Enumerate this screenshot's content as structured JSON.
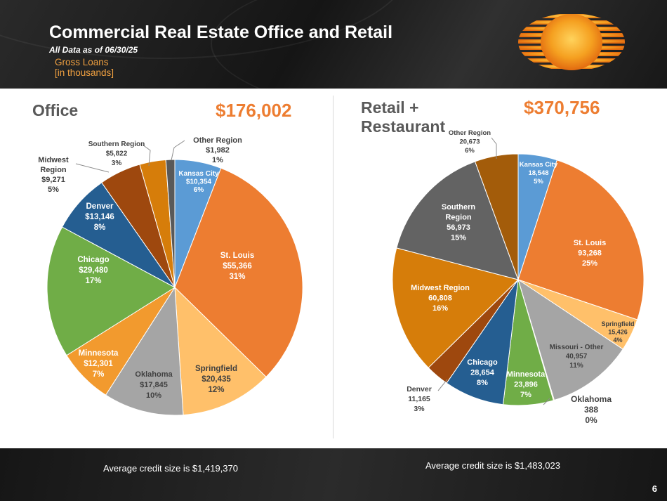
{
  "header": {
    "title": "Commercial Real Estate Office and Retail",
    "subtitle": "All Data as of 06/30/25",
    "gross_line1": "Gross Loans",
    "gross_line2": "[in thousands]"
  },
  "office": {
    "title": "Office",
    "total": "$176,002",
    "avg_credit": "Average credit size is $1,419,370"
  },
  "retail": {
    "title_line1": "Retail +",
    "title_line2": "Restaurant",
    "total": "$370,756",
    "avg_credit": "Average credit size is $1,483,023"
  },
  "page_number": "6",
  "colors": {
    "accent": "#ed7d31",
    "kansas_city": "#5b9bd5",
    "st_louis": "#ed7d31",
    "springfield": "#ffc06a",
    "oklahoma": "#a5a5a5",
    "minnesota": "#f29a2e",
    "chicago": "#70ad47",
    "denver": "#255e91",
    "midwest": "#9e480e",
    "southern": "#d67d0a",
    "other": "#636363"
  },
  "chart_data": [
    {
      "type": "pie",
      "title": "Office",
      "total": "$176,002",
      "units": "thousands",
      "slices": [
        {
          "name": "Kansas City",
          "value": 10354,
          "value_label": "$10,354",
          "pct": "6%",
          "color": "#5b9bd5",
          "text_color": "#ffffff"
        },
        {
          "name": "St. Louis",
          "value": 55366,
          "value_label": "$55,366",
          "pct": "31%",
          "color": "#ed7d31",
          "text_color": "#ffffff"
        },
        {
          "name": "Springfield",
          "value": 20435,
          "value_label": "$20,435",
          "pct": "12%",
          "color": "#ffc06a",
          "text_color": "#404040"
        },
        {
          "name": "Oklahoma",
          "value": 17845,
          "value_label": "$17,845",
          "pct": "10%",
          "color": "#a5a5a5",
          "text_color": "#404040"
        },
        {
          "name": "Minnesota",
          "value": 12301,
          "value_label": "$12,301",
          "pct": "7%",
          "color": "#f29a2e",
          "text_color": "#ffffff"
        },
        {
          "name": "Chicago",
          "value": 29480,
          "value_label": "$29,480",
          "pct": "17%",
          "color": "#70ad47",
          "text_color": "#ffffff"
        },
        {
          "name": "Denver",
          "value": 13146,
          "value_label": "$13,146",
          "pct": "8%",
          "color": "#255e91",
          "text_color": "#ffffff"
        },
        {
          "name": "Midwest Region",
          "value": 9271,
          "value_label": "$9,271",
          "pct": "5%",
          "color": "#9e480e",
          "text_color": "#404040"
        },
        {
          "name": "Southern Region",
          "value": 5822,
          "value_label": "$5,822",
          "pct": "3%",
          "color": "#d67d0a",
          "text_color": "#404040"
        },
        {
          "name": "Other Region",
          "value": 1982,
          "value_label": "$1,982",
          "pct": "1%",
          "color": "#595959",
          "text_color": "#404040"
        }
      ]
    },
    {
      "type": "pie",
      "title": "Retail + Restaurant",
      "total": "$370,756",
      "units": "thousands",
      "slices": [
        {
          "name": "Kansas City",
          "value": 18548,
          "value_label": "18,548",
          "pct": "5%",
          "color": "#5b9bd5",
          "text_color": "#ffffff"
        },
        {
          "name": "St. Louis",
          "value": 93268,
          "value_label": "93,268",
          "pct": "25%",
          "color": "#ed7d31",
          "text_color": "#ffffff"
        },
        {
          "name": "Springfield",
          "value": 15426,
          "value_label": "15,426",
          "pct": "4%",
          "color": "#ffc06a",
          "text_color": "#404040"
        },
        {
          "name": "Missouri - Other",
          "value": 40957,
          "value_label": "40,957",
          "pct": "11%",
          "color": "#a5a5a5",
          "text_color": "#404040"
        },
        {
          "name": "Oklahoma",
          "value": 388,
          "value_label": "388",
          "pct": "0%",
          "color": "#ffc000",
          "text_color": "#404040"
        },
        {
          "name": "Minnesota",
          "value": 23896,
          "value_label": "23,896",
          "pct": "7%",
          "color": "#70ad47",
          "text_color": "#ffffff"
        },
        {
          "name": "Chicago",
          "value": 28654,
          "value_label": "28,654",
          "pct": "8%",
          "color": "#255e91",
          "text_color": "#ffffff"
        },
        {
          "name": "Denver",
          "value": 11165,
          "value_label": "11,165",
          "pct": "3%",
          "color": "#9e480e",
          "text_color": "#404040"
        },
        {
          "name": "Midwest Region",
          "value": 60808,
          "value_label": "60,808",
          "pct": "16%",
          "color": "#d67d0a",
          "text_color": "#ffffff"
        },
        {
          "name": "Southern Region",
          "value": 56973,
          "value_label": "56,973",
          "pct": "15%",
          "color": "#636363",
          "text_color": "#ffffff"
        },
        {
          "name": "Other Region",
          "value": 20673,
          "value_label": "20,673",
          "pct": "6%",
          "color": "#a35c0a",
          "text_color": "#404040"
        }
      ]
    }
  ]
}
